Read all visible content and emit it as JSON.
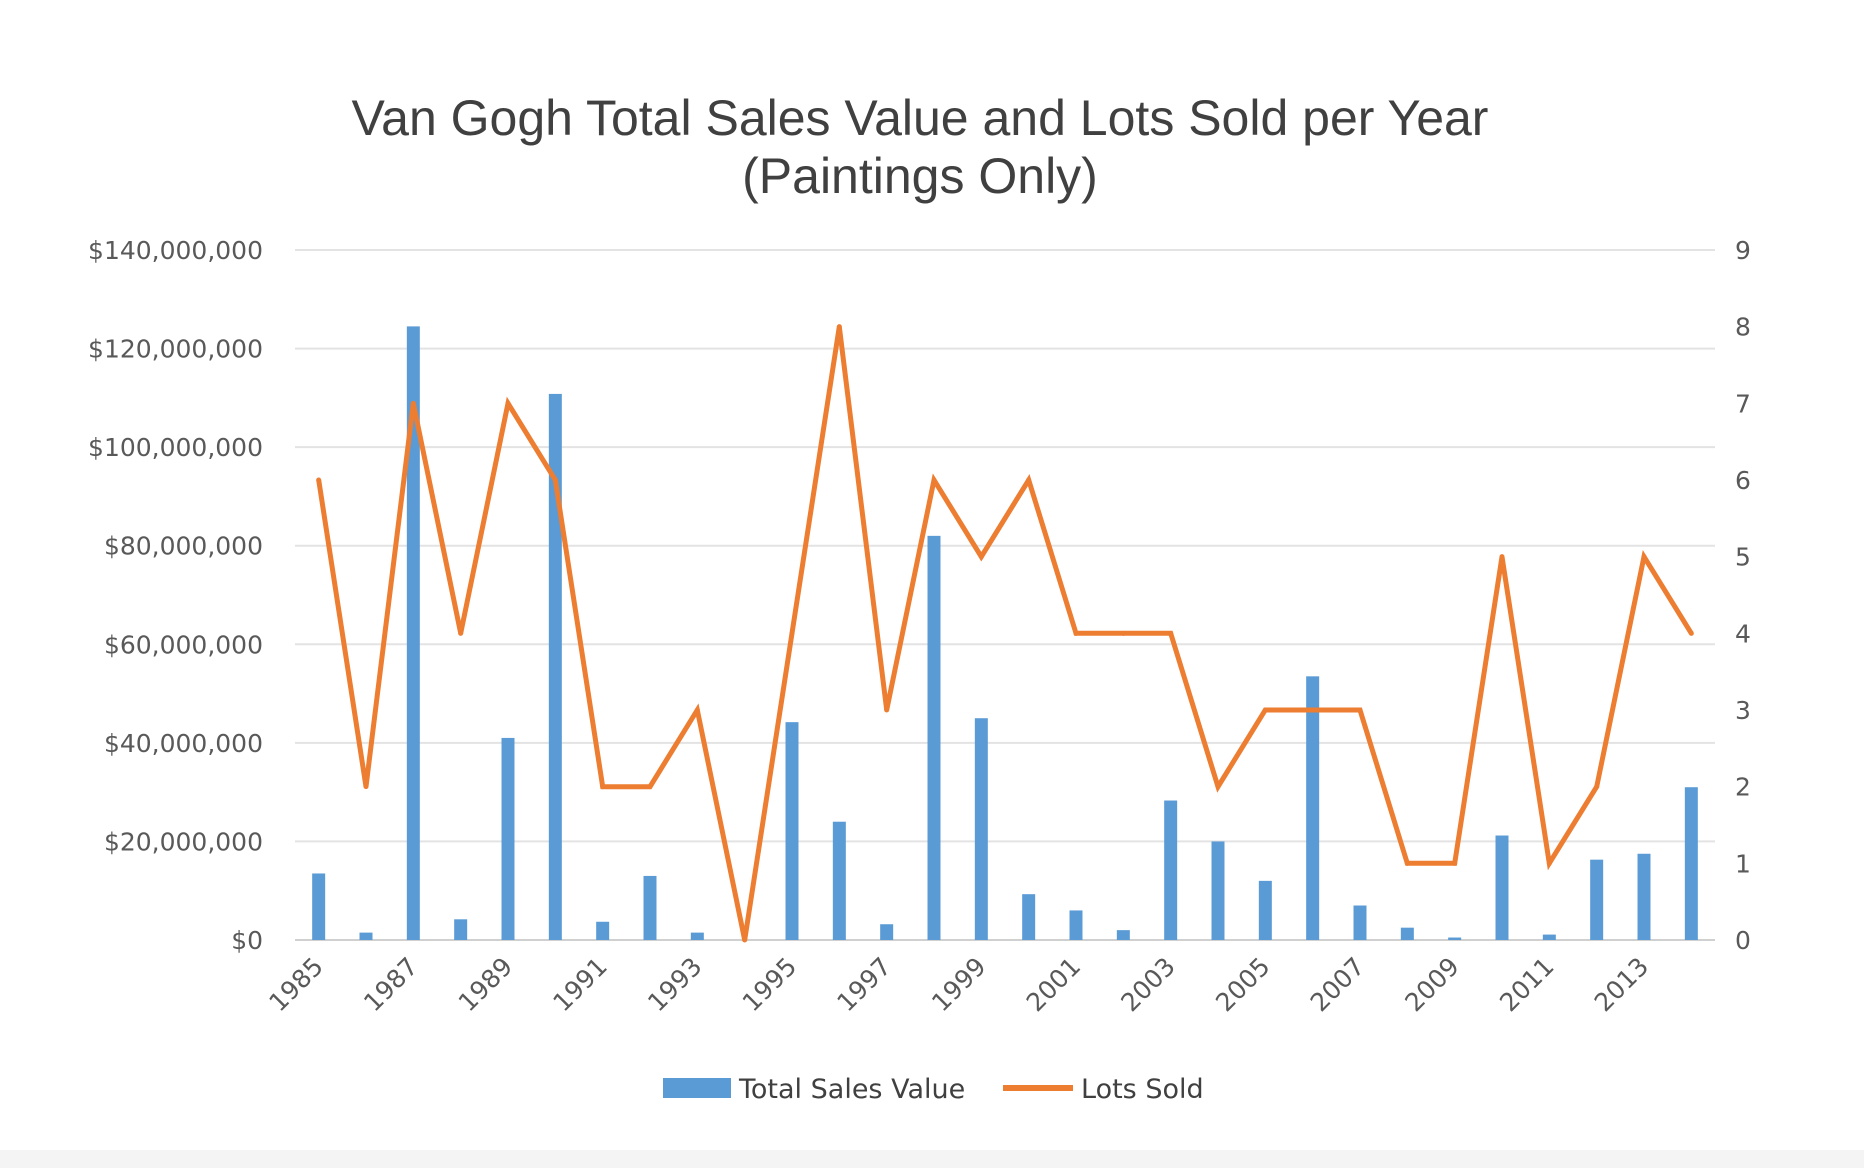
{
  "chart_data": {
    "type": "bar",
    "title": "Van Gogh Total Sales Value and Lots Sold per Year",
    "subtitle": "(Paintings Only)",
    "x": [
      1985,
      1986,
      1987,
      1988,
      1989,
      1990,
      1991,
      1992,
      1993,
      1994,
      1995,
      1996,
      1997,
      1998,
      1999,
      2000,
      2001,
      2002,
      2003,
      2004,
      2005,
      2006,
      2007,
      2008,
      2009,
      2010,
      2011,
      2012,
      2013,
      2014
    ],
    "x_tick_labels": [
      "1985",
      "1987",
      "1989",
      "1991",
      "1993",
      "1995",
      "1997",
      "1999",
      "2001",
      "2003",
      "2005",
      "2007",
      "2009",
      "2011",
      "2013"
    ],
    "y_left": {
      "ylim": [
        0,
        140000000
      ],
      "ticks": [
        0,
        20000000,
        40000000,
        60000000,
        80000000,
        100000000,
        120000000,
        140000000
      ],
      "tick_labels": [
        "$0",
        "$20,000,000",
        "$40,000,000",
        "$60,000,000",
        "$80,000,000",
        "$100,000,000",
        "$120,000,000",
        "$140,000,000"
      ]
    },
    "y_right": {
      "ylim": [
        0,
        9
      ],
      "ticks": [
        0,
        1,
        2,
        3,
        4,
        5,
        6,
        7,
        8,
        9
      ],
      "tick_labels": [
        "0",
        "1",
        "2",
        "3",
        "4",
        "5",
        "6",
        "7",
        "8",
        "9"
      ]
    },
    "grid": true,
    "legend_position": "bottom",
    "series": [
      {
        "name": "Total Sales Value",
        "type": "bar",
        "axis": "left",
        "color": "#5b9bd5",
        "values": [
          13500000,
          1500000,
          124500000,
          4200000,
          41000000,
          110800000,
          3700000,
          13000000,
          1500000,
          0,
          44200000,
          24000000,
          3200000,
          82000000,
          45000000,
          9300000,
          6000000,
          2000000,
          28300000,
          20000000,
          12000000,
          53500000,
          7000000,
          2500000,
          500000,
          21200000,
          1100000,
          16300000,
          17500000,
          31000000
        ]
      },
      {
        "name": "Lots Sold",
        "type": "line",
        "axis": "right",
        "color": "#ed7d31",
        "values": [
          6,
          2,
          7,
          4,
          7,
          6,
          2,
          2,
          3,
          0,
          4,
          8,
          3,
          6,
          5,
          6,
          4,
          4,
          4,
          2,
          3,
          3,
          3,
          1,
          1,
          5,
          1,
          2,
          5,
          4
        ]
      }
    ]
  }
}
